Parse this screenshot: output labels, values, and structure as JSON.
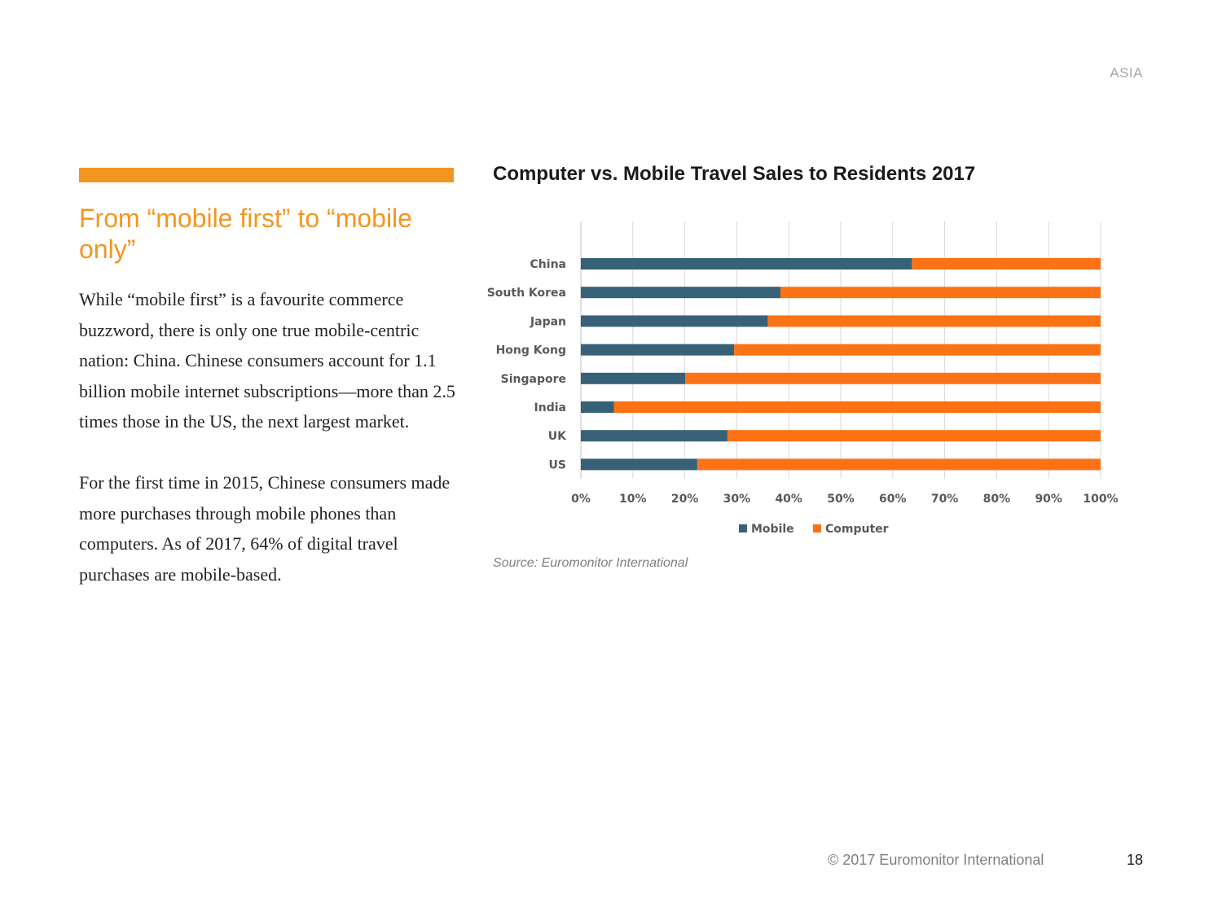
{
  "header": {
    "region": "ASIA"
  },
  "article": {
    "headline": "From “mobile first” to “mobile only”",
    "paragraphs": [
      "While “mobile first” is a favourite commerce buzzword, there is only one true mobile-centric nation: China. Chinese consumers account for 1.1 billion mobile internet subscriptions—more than 2.5 times those in the US, the next largest market.",
      "For the first time in 2015, Chinese consumers made more purchases through mobile phones than computers. As of 2017, 64% of digital travel purchases are mobile-based."
    ]
  },
  "chart_data": {
    "type": "bar",
    "orientation": "horizontal",
    "stacked": true,
    "percent_stacked": true,
    "title": "Computer vs. Mobile Travel Sales to Residents 2017",
    "categories": [
      "China",
      "South Korea",
      "Japan",
      "Hong Kong",
      "Singapore",
      "India",
      "UK",
      "US"
    ],
    "series": [
      {
        "name": "Mobile",
        "color": "#376177",
        "values": [
          63.7,
          38.4,
          36.0,
          29.5,
          20.1,
          6.4,
          28.2,
          22.4
        ]
      },
      {
        "name": "Computer",
        "color": "#fc7215",
        "values": [
          36.3,
          61.6,
          64.0,
          70.5,
          79.9,
          93.6,
          71.8,
          77.6
        ]
      }
    ],
    "xlim": [
      0,
      100
    ],
    "xticks": [
      "0%",
      "10%",
      "20%",
      "30%",
      "40%",
      "50%",
      "60%",
      "70%",
      "80%",
      "90%",
      "100%"
    ],
    "grid": true,
    "legend_position": "bottom"
  },
  "source": "Source: Euromonitor International",
  "footer": {
    "copyright": "© 2017 Euromonitor International",
    "page_number": "18"
  }
}
